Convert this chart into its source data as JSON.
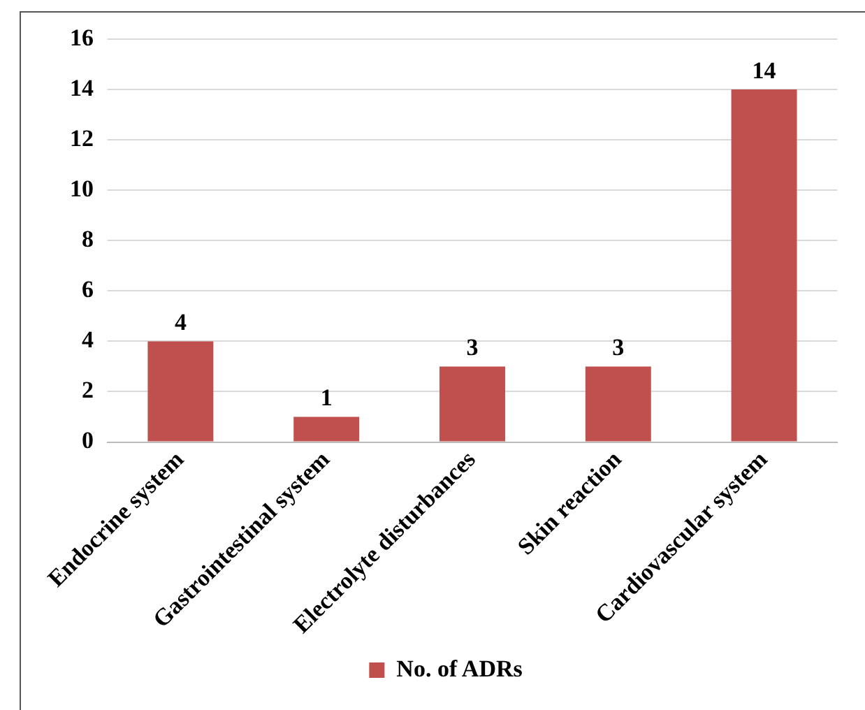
{
  "chart_data": {
    "type": "bar",
    "categories": [
      "Endocrine system",
      "Gastrointestinal system",
      "Electrolyte disturbances",
      "Skin reaction",
      "Cardiovascular system"
    ],
    "series": [
      {
        "name": "No. of ADRs",
        "color": "#c0504d",
        "values": [
          4,
          1,
          3,
          3,
          14
        ]
      }
    ],
    "ylim": [
      0,
      16
    ],
    "yticks": [
      0,
      2,
      4,
      6,
      8,
      10,
      12,
      14,
      16
    ],
    "grid": "y",
    "legend": "bottom",
    "data_labels": true
  }
}
